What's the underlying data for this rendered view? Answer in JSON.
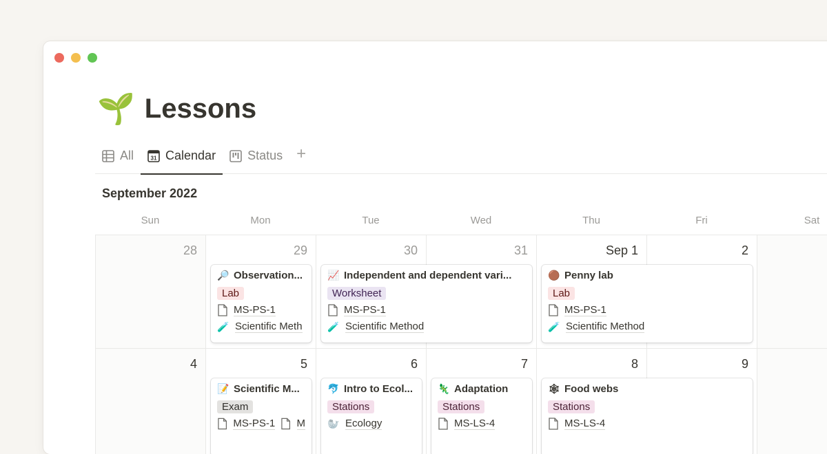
{
  "window": {
    "controls": [
      "close",
      "minimize",
      "maximize"
    ],
    "colors": {
      "close": "#ec6a5e",
      "minimize": "#f4bf4f",
      "maximize": "#61c554"
    }
  },
  "page": {
    "icon": "🌱",
    "title": "Lessons"
  },
  "tabs": [
    {
      "label": "All",
      "icon": "table-icon"
    },
    {
      "label": "Calendar",
      "icon": "calendar-icon",
      "active": true
    },
    {
      "label": "Status",
      "icon": "board-icon"
    }
  ],
  "calendar": {
    "month_label": "September 2022",
    "weekdays": [
      "Sun",
      "Mon",
      "Tue",
      "Wed",
      "Thu",
      "Fri",
      "Sat"
    ],
    "weeks": [
      [
        "28",
        "29",
        "30",
        "31",
        "Sep 1",
        "2",
        ""
      ],
      [
        "4",
        "5",
        "6",
        "7",
        "8",
        "9",
        ""
      ]
    ],
    "events": [
      {
        "icon": "🔎",
        "title": "Observation...",
        "tag": "Lab",
        "tag_bg": "#fbe4e4",
        "tag_fg": "#5d1715",
        "doc": "MS-PS-1",
        "unit_icon": "🧪",
        "unit": "Scientific Meth"
      },
      {
        "icon": "📈",
        "title": "Independent and dependent vari...",
        "tag": "Worksheet",
        "tag_bg": "#eae4f2",
        "tag_fg": "#412454",
        "doc": "MS-PS-1",
        "unit_icon": "🧪",
        "unit": "Scientific Method"
      },
      {
        "icon": "🟤",
        "title": "Penny lab",
        "tag": "Lab",
        "tag_bg": "#fbe4e4",
        "tag_fg": "#5d1715",
        "doc": "MS-PS-1",
        "unit_icon": "🧪",
        "unit": "Scientific Method"
      },
      {
        "icon": "📝",
        "title": "Scientific M...",
        "tag": "Exam",
        "tag_bg": "#e3e2e0",
        "tag_fg": "#32302c",
        "doc": "MS-PS-1",
        "doc2": "M"
      },
      {
        "icon": "🐬",
        "title": "Intro to Ecol...",
        "tag": "Stations",
        "tag_bg": "#f4dfeb",
        "tag_fg": "#4c2337",
        "unit_icon": "🦭",
        "unit": "Ecology"
      },
      {
        "icon": "🦎",
        "title": "Adaptation",
        "tag": "Stations",
        "tag_bg": "#f4dfeb",
        "tag_fg": "#4c2337",
        "doc": "MS-LS-4"
      },
      {
        "icon": "🕸",
        "title": "Food webs",
        "tag": "Stations",
        "tag_bg": "#f4dfeb",
        "tag_fg": "#4c2337",
        "doc": "MS-LS-4"
      }
    ]
  }
}
